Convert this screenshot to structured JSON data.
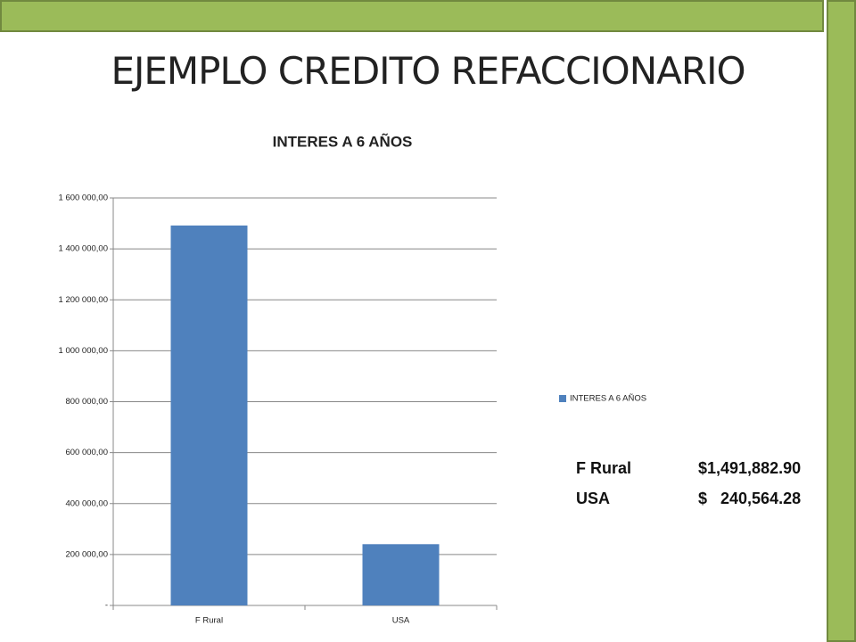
{
  "title": "EJEMPLO CREDITO REFACCIONARIO",
  "chart_data": {
    "type": "bar",
    "title": "INTERES A 6 AÑOS",
    "categories": [
      "F Rural",
      "USA"
    ],
    "series": [
      {
        "name": "INTERES A 6 AÑOS",
        "color": "#4f81bd",
        "values": [
          1491882.9,
          240564.28
        ]
      }
    ],
    "ylim": [
      0,
      1600000
    ],
    "yticks": [
      {
        "value": 0,
        "label": "-"
      },
      {
        "value": 200000,
        "label": "200 000,00"
      },
      {
        "value": 400000,
        "label": "400 000,00"
      },
      {
        "value": 600000,
        "label": "600 000,00"
      },
      {
        "value": 800000,
        "label": "800 000,00"
      },
      {
        "value": 1000000,
        "label": "1 000 000,00"
      },
      {
        "value": 1200000,
        "label": "1 200 000,00"
      },
      {
        "value": 1400000,
        "label": "1 400 000,00"
      },
      {
        "value": 1600000,
        "label": "1 600 000,00"
      }
    ],
    "grid": true,
    "legend": "right"
  },
  "table": {
    "rows": [
      [
        "F Rural",
        "$1,491,882.90"
      ],
      [
        "USA",
        "$   240,564.28"
      ]
    ]
  }
}
